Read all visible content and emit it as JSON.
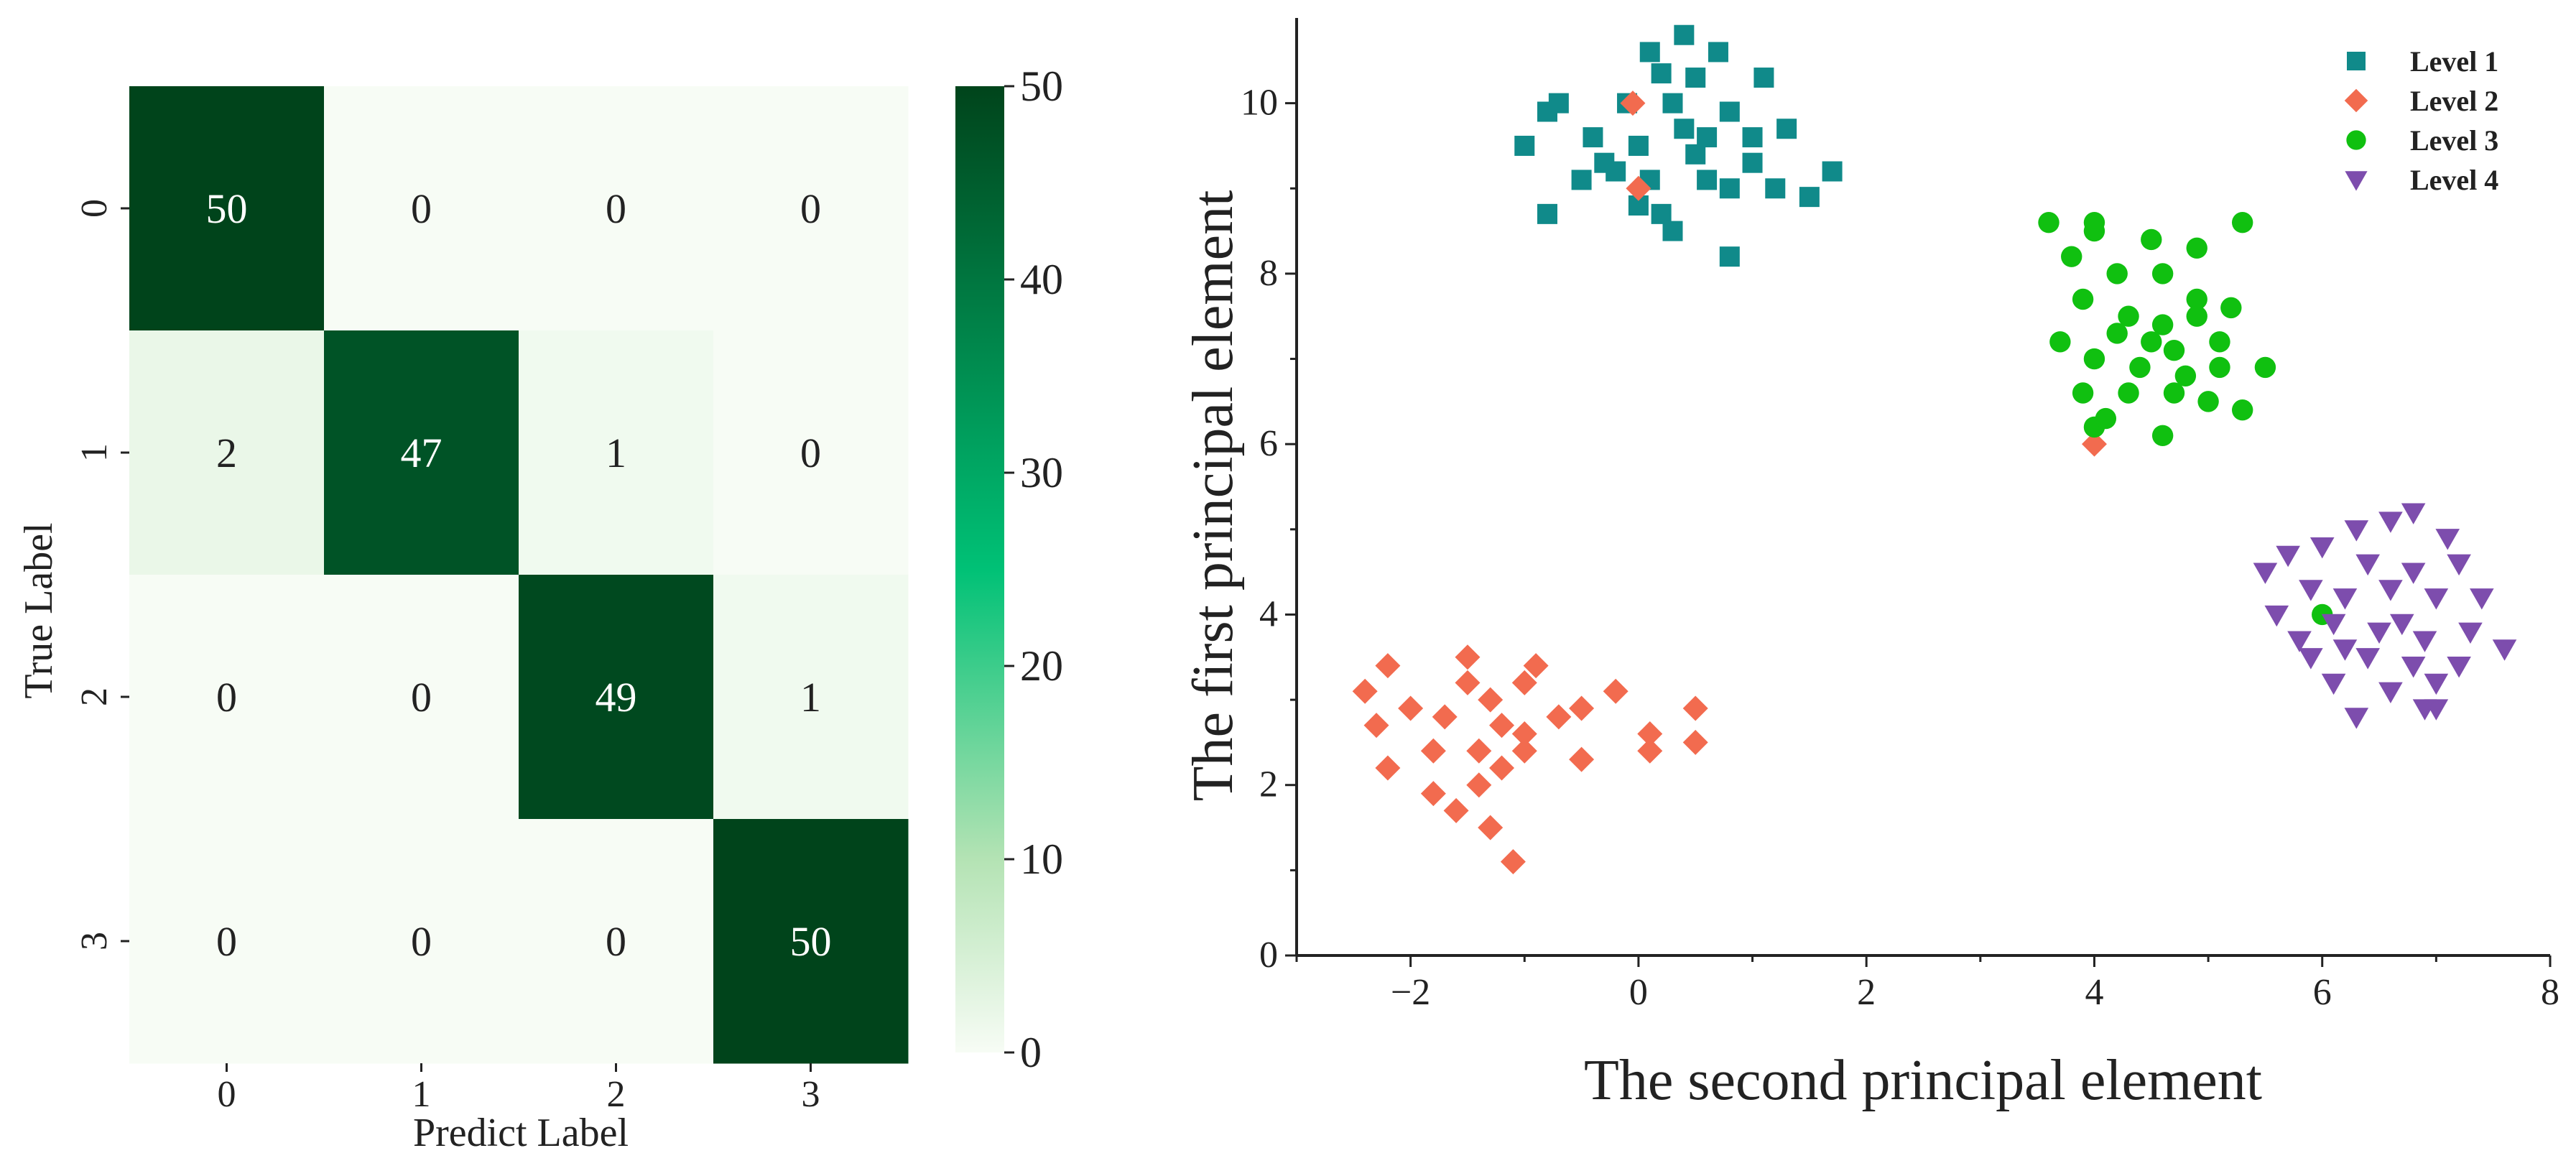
{
  "chart_data": [
    {
      "type": "heatmap",
      "title": "",
      "xlabel": "Predict Label",
      "ylabel": "True Label",
      "x_categories": [
        "0",
        "1",
        "2",
        "3"
      ],
      "y_categories": [
        "0",
        "1",
        "2",
        "3"
      ],
      "values": [
        [
          50,
          0,
          0,
          0
        ],
        [
          2,
          47,
          1,
          0
        ],
        [
          0,
          0,
          49,
          1
        ],
        [
          0,
          0,
          0,
          50
        ]
      ],
      "colorbar": {
        "min": 0,
        "max": 50,
        "ticks": [
          "0",
          "10",
          "20",
          "30",
          "40",
          "50"
        ],
        "colors": [
          "#f7fcf5",
          "#b4e3b4",
          "#00c176",
          "#00441b"
        ]
      }
    },
    {
      "type": "scatter",
      "title": "",
      "xlabel": "The second principal element",
      "ylabel": "The first principal element",
      "xlim": [
        -3,
        8
      ],
      "ylim": [
        0,
        11
      ],
      "xticks": [
        "−2",
        "0",
        "2",
        "4",
        "6",
        "8"
      ],
      "yticks": [
        "0",
        "2",
        "4",
        "6",
        "8",
        "10"
      ],
      "legend_position": "top-right",
      "series": [
        {
          "name": "Level 1",
          "marker": "square",
          "color": "#108a8a",
          "points": [
            [
              0.1,
              10.6
            ],
            [
              0.4,
              10.8
            ],
            [
              0.7,
              10.6
            ],
            [
              1.1,
              10.3
            ],
            [
              0.5,
              10.3
            ],
            [
              0.2,
              10.35
            ],
            [
              -0.1,
              10.0
            ],
            [
              -0.7,
              10.0
            ],
            [
              -0.8,
              9.9
            ],
            [
              0.3,
              10.0
            ],
            [
              0.8,
              9.9
            ],
            [
              1.3,
              9.7
            ],
            [
              -0.4,
              9.6
            ],
            [
              0.0,
              9.5
            ],
            [
              -0.2,
              9.2
            ],
            [
              0.5,
              9.4
            ],
            [
              1.0,
              9.3
            ],
            [
              1.7,
              9.2
            ],
            [
              -1.0,
              9.5
            ],
            [
              -0.5,
              9.1
            ],
            [
              0.1,
              9.1
            ],
            [
              0.6,
              9.1
            ],
            [
              1.2,
              9.0
            ],
            [
              -0.8,
              8.7
            ],
            [
              0.2,
              8.7
            ],
            [
              0.8,
              9.0
            ],
            [
              1.5,
              8.9
            ],
            [
              0.3,
              8.5
            ],
            [
              0.8,
              8.2
            ],
            [
              0.0,
              8.8
            ],
            [
              0.4,
              9.7
            ],
            [
              1.0,
              9.6
            ],
            [
              -0.3,
              9.3
            ],
            [
              0.6,
              9.6
            ]
          ]
        },
        {
          "name": "Level 2",
          "marker": "diamond",
          "color": "#f26b4f",
          "points": [
            [
              -0.05,
              10.0
            ],
            [
              0.0,
              9.0
            ],
            [
              4.0,
              6.0
            ],
            [
              -2.4,
              3.1
            ],
            [
              -2.2,
              3.4
            ],
            [
              -1.5,
              3.5
            ],
            [
              -1.3,
              3.0
            ],
            [
              -0.9,
              3.4
            ],
            [
              -0.2,
              3.1
            ],
            [
              -2.3,
              2.7
            ],
            [
              -2.0,
              2.9
            ],
            [
              -1.7,
              2.8
            ],
            [
              -1.2,
              2.7
            ],
            [
              -1.0,
              2.6
            ],
            [
              -0.5,
              2.9
            ],
            [
              0.1,
              2.6
            ],
            [
              0.5,
              2.9
            ],
            [
              -2.2,
              2.2
            ],
            [
              -1.8,
              2.4
            ],
            [
              -1.4,
              2.4
            ],
            [
              -1.0,
              2.4
            ],
            [
              -0.5,
              2.3
            ],
            [
              0.1,
              2.4
            ],
            [
              0.5,
              2.5
            ],
            [
              -1.8,
              1.9
            ],
            [
              -1.4,
              2.0
            ],
            [
              -1.2,
              2.2
            ],
            [
              -1.6,
              1.7
            ],
            [
              -1.3,
              1.5
            ],
            [
              -1.1,
              1.1
            ],
            [
              -1.0,
              3.2
            ],
            [
              -0.7,
              2.8
            ],
            [
              -1.5,
              3.2
            ]
          ]
        },
        {
          "name": "Level 3",
          "marker": "circle",
          "color": "#10c010",
          "points": [
            [
              3.6,
              8.6
            ],
            [
              4.0,
              8.6
            ],
            [
              5.3,
              8.6
            ],
            [
              4.0,
              8.5
            ],
            [
              4.5,
              8.4
            ],
            [
              4.9,
              8.3
            ],
            [
              3.8,
              8.2
            ],
            [
              4.2,
              8.0
            ],
            [
              4.6,
              8.0
            ],
            [
              4.9,
              7.7
            ],
            [
              5.2,
              7.6
            ],
            [
              3.9,
              7.7
            ],
            [
              4.3,
              7.5
            ],
            [
              4.6,
              7.4
            ],
            [
              5.1,
              7.2
            ],
            [
              5.5,
              6.9
            ],
            [
              3.7,
              7.2
            ],
            [
              4.0,
              7.0
            ],
            [
              4.4,
              6.9
            ],
            [
              4.8,
              6.8
            ],
            [
              5.1,
              6.9
            ],
            [
              3.9,
              6.6
            ],
            [
              4.3,
              6.6
            ],
            [
              4.7,
              6.6
            ],
            [
              5.0,
              6.5
            ],
            [
              5.3,
              6.4
            ],
            [
              4.0,
              6.2
            ],
            [
              4.6,
              6.1
            ],
            [
              4.7,
              7.1
            ],
            [
              4.2,
              7.3
            ],
            [
              4.5,
              7.2
            ],
            [
              6.0,
              4.0
            ],
            [
              4.1,
              6.3
            ],
            [
              4.9,
              7.5
            ]
          ]
        },
        {
          "name": "Level 4",
          "marker": "triangle-down",
          "color": "#7d4dad",
          "points": [
            [
              6.3,
              5.0
            ],
            [
              6.6,
              5.1
            ],
            [
              6.8,
              5.2
            ],
            [
              7.1,
              4.9
            ],
            [
              5.7,
              4.7
            ],
            [
              6.0,
              4.8
            ],
            [
              6.4,
              4.6
            ],
            [
              6.8,
              4.5
            ],
            [
              7.2,
              4.6
            ],
            [
              5.5,
              4.5
            ],
            [
              5.9,
              4.3
            ],
            [
              6.2,
              4.2
            ],
            [
              6.6,
              4.3
            ],
            [
              7.0,
              4.2
            ],
            [
              7.4,
              4.2
            ],
            [
              5.6,
              4.0
            ],
            [
              6.1,
              3.9
            ],
            [
              6.5,
              3.8
            ],
            [
              6.9,
              3.7
            ],
            [
              7.3,
              3.8
            ],
            [
              7.6,
              3.6
            ],
            [
              5.9,
              3.5
            ],
            [
              6.4,
              3.5
            ],
            [
              6.8,
              3.4
            ],
            [
              7.2,
              3.4
            ],
            [
              6.1,
              3.2
            ],
            [
              6.6,
              3.1
            ],
            [
              7.0,
              3.2
            ],
            [
              6.3,
              2.8
            ],
            [
              6.9,
              2.9
            ],
            [
              7.0,
              2.9
            ],
            [
              5.8,
              3.7
            ],
            [
              6.2,
              3.6
            ],
            [
              6.7,
              3.9
            ]
          ]
        }
      ]
    }
  ]
}
